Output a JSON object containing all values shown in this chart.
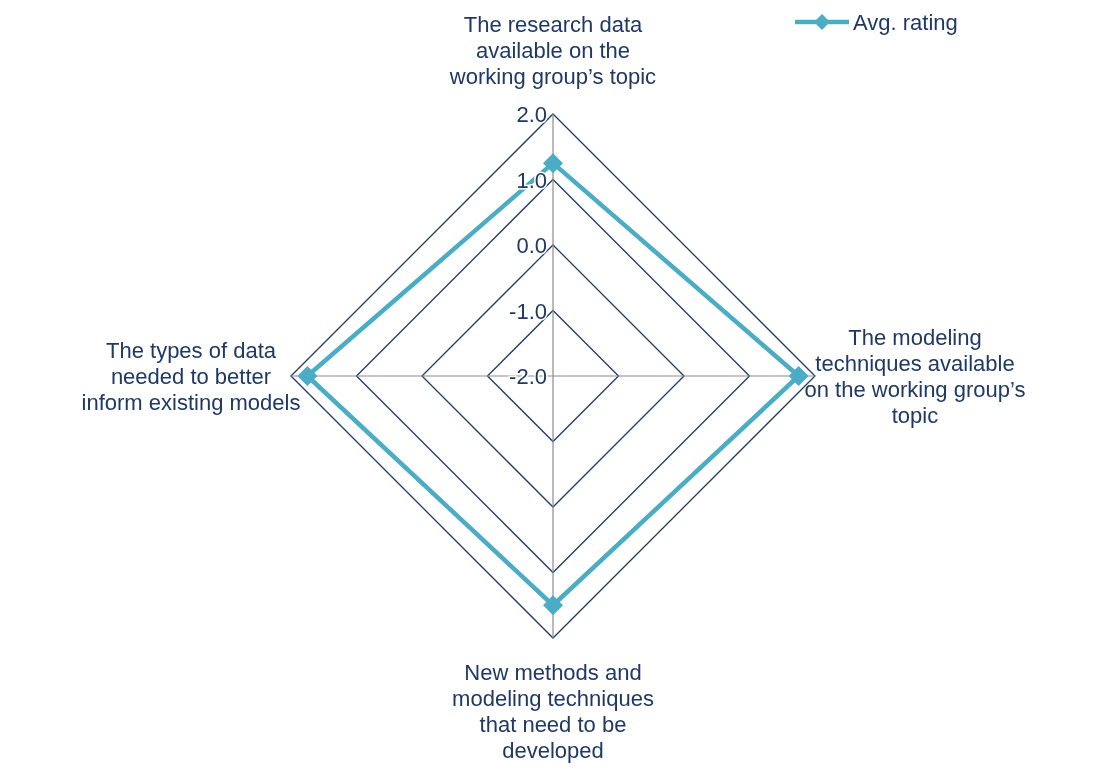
{
  "chart_data": {
    "type": "radar",
    "categories": [
      "The research data available on the working group’s topic",
      "The modeling techniques available on the working group’s topic",
      "New methods and modeling techniques that need to be developed",
      "The types of data needed to better inform existing models"
    ],
    "series": [
      {
        "name": "Avg. rating",
        "color": "#4bacc6",
        "values": [
          1.25,
          1.75,
          1.5,
          1.75
        ]
      }
    ],
    "ylim": [
      -2,
      2
    ],
    "yticks": [
      {
        "value": -2,
        "label": "-2.0"
      },
      {
        "value": -1,
        "label": "-1.0"
      },
      {
        "value": 0,
        "label": "0.0"
      },
      {
        "value": 1,
        "label": "1.0"
      },
      {
        "value": 2,
        "label": "2.0"
      }
    ],
    "grid": true,
    "legend": "top right",
    "marker": "diamond",
    "line_style": "solid"
  }
}
